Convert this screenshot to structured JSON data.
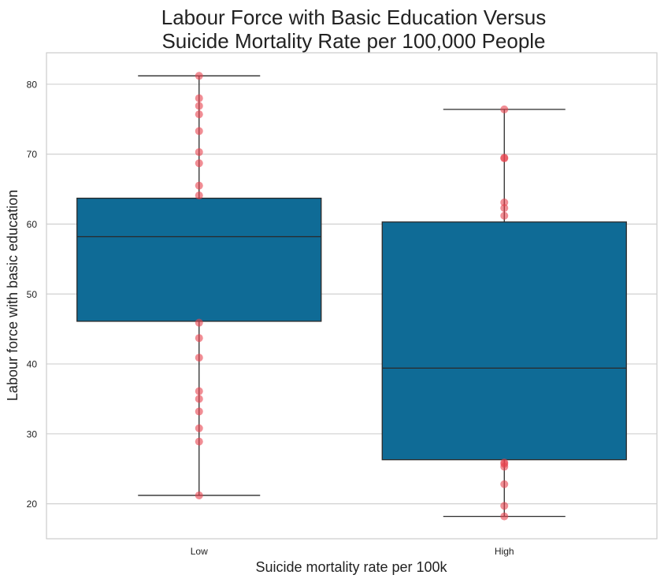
{
  "chart_data": {
    "type": "box",
    "title_lines": [
      "Labour Force with Basic Education Versus",
      "Suicide Mortality Rate per 100,000 People"
    ],
    "xlabel": "Suicide mortality rate per 100k",
    "ylabel": "Labour force with basic education",
    "categories": [
      "Low",
      "High"
    ],
    "ylim": [
      15,
      84.5
    ],
    "yticks": [
      20,
      30,
      40,
      50,
      60,
      70,
      80
    ],
    "grid": true,
    "colors": {
      "box": "#0f6b96",
      "edge": "#2a2a2a",
      "point": "#e8434e",
      "grid": "#d0d0d0",
      "frame": "#cccccc",
      "text": "#222222"
    },
    "boxes": [
      {
        "category": "Low",
        "min": 21.2,
        "q1": 46.1,
        "median": 58.2,
        "q3": 63.7,
        "max": 81.2,
        "points": [
          81.2,
          78.0,
          76.9,
          75.7,
          73.3,
          70.3,
          68.7,
          65.5,
          64.1,
          45.9,
          43.7,
          40.9,
          36.1,
          35.0,
          33.2,
          30.8,
          28.9,
          21.2
        ]
      },
      {
        "category": "High",
        "min": 18.2,
        "q1": 26.3,
        "median": 39.4,
        "q3": 60.3,
        "max": 76.4,
        "points": [
          76.4,
          69.5,
          69.4,
          63.1,
          62.3,
          61.2,
          25.9,
          25.7,
          25.3,
          22.8,
          19.7,
          18.2
        ]
      }
    ]
  }
}
